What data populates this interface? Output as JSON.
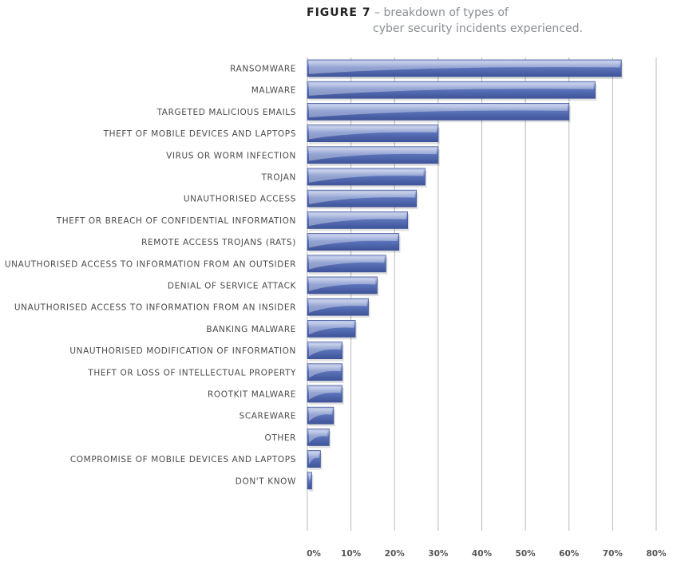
{
  "figure": {
    "label": "FIGURE 7",
    "separator": "–",
    "title_line1": "breakdown of types of",
    "title_line2": "cyber security incidents experienced."
  },
  "colors": {
    "bar": "#5c74bb",
    "bar_dark": "#3f5499",
    "bar_light": "#c7d1ee",
    "grid": "#b8b8b8"
  },
  "chart_data": {
    "type": "bar",
    "orientation": "horizontal",
    "title": "breakdown of types of cyber security incidents experienced.",
    "categories": [
      "RANSOMWARE",
      "MALWARE",
      "TARGETED MALICIOUS EMAILS",
      "THEFT OF MOBILE DEVICES AND LAPTOPS",
      "VIRUS OR WORM INFECTION",
      "TROJAN",
      "UNAUTHORISED ACCESS",
      "THEFT OR BREACH OF CONFIDENTIAL INFORMATION",
      "REMOTE ACCESS TROJANS (RATS)",
      "UNAUTHORISED ACCESS TO INFORMATION FROM AN OUTSIDER",
      "DENIAL OF SERVICE ATTACK",
      "UNAUTHORISED ACCESS TO INFORMATION FROM AN INSIDER",
      "BANKING MALWARE",
      "UNAUTHORISED MODIFICATION OF INFORMATION",
      "THEFT OR LOSS OF INTELLECTUAL PROPERTY",
      "ROOTKIT MALWARE",
      "SCAREWARE",
      "OTHER",
      "COMPROMISE OF MOBILE DEVICES AND LAPTOPS",
      "DON'T KNOW"
    ],
    "values": [
      72,
      66,
      60,
      30,
      30,
      27,
      25,
      23,
      21,
      18,
      16,
      14,
      11,
      8,
      8,
      8,
      6,
      5,
      3,
      1
    ],
    "unit": "%",
    "xlim": [
      0,
      80
    ],
    "ticks": [
      0,
      10,
      20,
      30,
      40,
      50,
      60,
      70,
      80
    ],
    "tick_labels": [
      "0%",
      "10%",
      "20%",
      "30%",
      "40%",
      "50%",
      "60%",
      "70%",
      "80%"
    ],
    "grid": true,
    "legend": "none"
  }
}
